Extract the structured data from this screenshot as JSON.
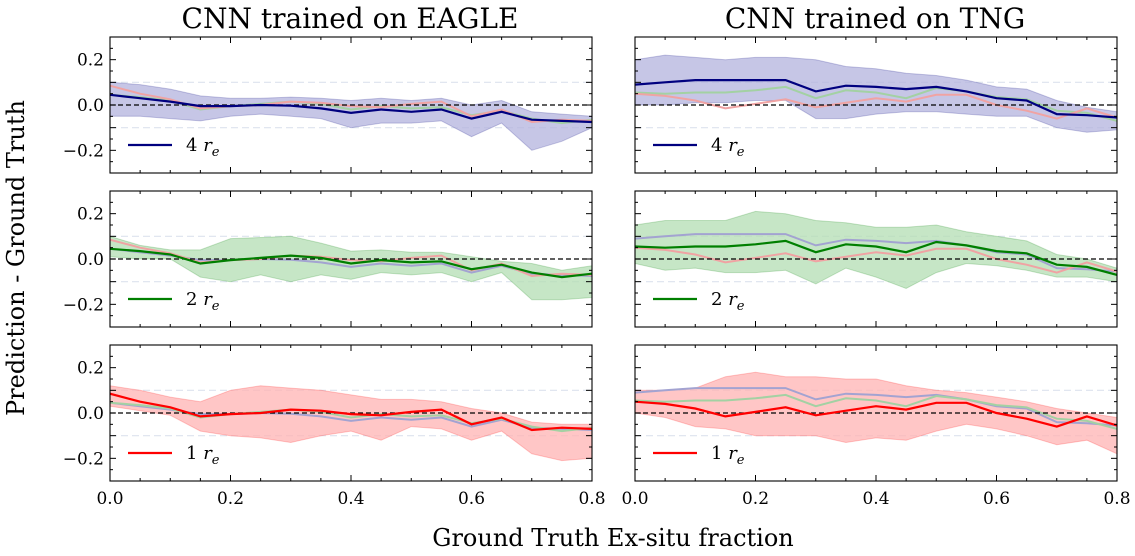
{
  "figure": {
    "ylabel": "Prediction - Ground Truth",
    "xlabel": "Ground Truth Ex-situ fraction",
    "columns": [
      {
        "title": "CNN trained on EAGLE"
      },
      {
        "title": "CNN trained on TNG"
      }
    ],
    "series_colors": {
      "4": "#00007f",
      "2": "#007f00",
      "1": "#ff0000"
    },
    "faded_colors": {
      "4": "#a3a3d1",
      "2": "#a3d1a3",
      "1": "#f0a3a3"
    },
    "band_colors": {
      "4": "#b3b3dd",
      "2": "#b3ddb3",
      "1": "#ffb3b3"
    },
    "legend_symbol": "r",
    "legend_subscript": "e"
  },
  "chart_data": [
    {
      "type": "line",
      "title": "CNN trained on EAGLE",
      "xlabel": "Ground Truth Ex-situ fraction",
      "ylabel": "Prediction - Ground Truth",
      "xlim": [
        0,
        0.8
      ],
      "ylim": [
        -0.3,
        0.3
      ],
      "xticks": [
        "0.0",
        "0.2",
        "0.4",
        "0.6",
        "0.8"
      ],
      "yticks": [
        "−0.2",
        "0.0",
        "0.2"
      ],
      "x": [
        0.0,
        0.05,
        0.1,
        0.15,
        0.2,
        0.25,
        0.3,
        0.35,
        0.4,
        0.45,
        0.5,
        0.55,
        0.6,
        0.65,
        0.7,
        0.75,
        0.8
      ],
      "series": [
        {
          "name": "4",
          "legend": "4 r_e",
          "values": [
            0.045,
            0.03,
            0.015,
            -0.005,
            -0.005,
            0.0,
            -0.003,
            -0.015,
            -0.035,
            -0.02,
            -0.03,
            -0.02,
            -0.06,
            -0.03,
            -0.065,
            -0.07,
            -0.075
          ],
          "upper": [
            0.1,
            0.09,
            0.07,
            0.04,
            0.03,
            0.03,
            0.035,
            0.03,
            0.02,
            0.03,
            0.02,
            0.03,
            0.0,
            0.02,
            -0.03,
            -0.04,
            -0.05
          ],
          "lower": [
            -0.05,
            -0.05,
            -0.06,
            -0.07,
            -0.05,
            -0.04,
            -0.05,
            -0.06,
            -0.1,
            -0.08,
            -0.08,
            -0.07,
            -0.14,
            -0.08,
            -0.2,
            -0.16,
            -0.1
          ]
        },
        {
          "name": "2",
          "legend": "2 r_e",
          "values": [
            0.045,
            0.035,
            0.02,
            -0.02,
            -0.005,
            0.005,
            0.015,
            0.005,
            -0.02,
            -0.005,
            -0.015,
            -0.01,
            -0.045,
            -0.025,
            -0.06,
            -0.08,
            -0.065
          ],
          "upper": [
            0.1,
            0.06,
            0.04,
            0.04,
            0.09,
            0.095,
            0.1,
            0.07,
            0.035,
            0.04,
            0.03,
            0.03,
            0.01,
            -0.01,
            -0.02,
            -0.05,
            -0.03
          ],
          "lower": [
            0.01,
            0.0,
            0.0,
            -0.08,
            -0.1,
            -0.07,
            -0.1,
            -0.07,
            -0.09,
            -0.06,
            -0.07,
            -0.06,
            -0.1,
            -0.06,
            -0.18,
            -0.18,
            -0.17
          ]
        },
        {
          "name": "1",
          "legend": "1 r_e",
          "values": [
            0.085,
            0.05,
            0.025,
            -0.015,
            -0.005,
            0.0,
            0.015,
            0.01,
            -0.005,
            -0.01,
            0.005,
            0.015,
            -0.05,
            -0.02,
            -0.075,
            -0.065,
            -0.07
          ],
          "upper": [
            0.12,
            0.1,
            0.07,
            0.05,
            0.1,
            0.12,
            0.11,
            0.1,
            0.08,
            0.06,
            0.06,
            0.05,
            0.02,
            0.0,
            -0.04,
            -0.05,
            -0.05
          ],
          "lower": [
            0.03,
            0.01,
            -0.01,
            -0.08,
            -0.1,
            -0.11,
            -0.13,
            -0.1,
            -0.08,
            -0.12,
            -0.06,
            -0.07,
            -0.12,
            -0.08,
            -0.18,
            -0.21,
            -0.2
          ]
        }
      ]
    },
    {
      "type": "line",
      "title": "CNN trained on TNG",
      "xlabel": "Ground Truth Ex-situ fraction",
      "ylabel": "Prediction - Ground Truth",
      "xlim": [
        0,
        0.8
      ],
      "ylim": [
        -0.3,
        0.3
      ],
      "xticks": [
        "0.0",
        "0.2",
        "0.4",
        "0.6",
        "0.8"
      ],
      "yticks": [],
      "x": [
        0.0,
        0.05,
        0.1,
        0.15,
        0.2,
        0.25,
        0.3,
        0.35,
        0.4,
        0.45,
        0.5,
        0.55,
        0.6,
        0.65,
        0.7,
        0.75,
        0.8
      ],
      "series": [
        {
          "name": "4",
          "legend": "4 r_e",
          "values": [
            0.09,
            0.1,
            0.11,
            0.11,
            0.11,
            0.11,
            0.06,
            0.085,
            0.08,
            0.07,
            0.08,
            0.06,
            0.03,
            0.02,
            -0.04,
            -0.045,
            -0.055
          ],
          "upper": [
            0.2,
            0.22,
            0.21,
            0.2,
            0.21,
            0.21,
            0.2,
            0.17,
            0.16,
            0.14,
            0.13,
            0.11,
            0.08,
            0.07,
            0.02,
            -0.01,
            -0.03
          ],
          "lower": [
            0.0,
            0.0,
            0.01,
            0.01,
            0.02,
            0.02,
            -0.06,
            -0.06,
            -0.04,
            -0.03,
            -0.03,
            -0.04,
            -0.05,
            -0.05,
            -0.1,
            -0.12,
            -0.11
          ]
        },
        {
          "name": "2",
          "legend": "2 r_e",
          "values": [
            0.055,
            0.05,
            0.055,
            0.055,
            0.065,
            0.08,
            0.03,
            0.065,
            0.055,
            0.03,
            0.075,
            0.06,
            0.035,
            0.025,
            -0.025,
            -0.035,
            -0.07
          ],
          "upper": [
            0.15,
            0.17,
            0.17,
            0.17,
            0.21,
            0.2,
            0.17,
            0.16,
            0.14,
            0.14,
            0.15,
            0.12,
            0.1,
            0.08,
            0.02,
            0.0,
            -0.04
          ],
          "lower": [
            -0.02,
            -0.05,
            -0.04,
            -0.06,
            -0.06,
            -0.05,
            -0.11,
            -0.04,
            -0.08,
            -0.13,
            -0.06,
            -0.02,
            -0.03,
            -0.05,
            -0.08,
            -0.08,
            -0.1
          ]
        },
        {
          "name": "1",
          "legend": "1 r_e",
          "values": [
            0.05,
            0.04,
            0.02,
            -0.015,
            0.005,
            0.025,
            -0.01,
            0.01,
            0.03,
            0.015,
            0.045,
            0.045,
            0.0,
            -0.025,
            -0.06,
            -0.015,
            -0.055
          ],
          "upper": [
            0.1,
            0.1,
            0.11,
            0.16,
            0.18,
            0.16,
            0.16,
            0.15,
            0.15,
            0.12,
            0.1,
            0.09,
            0.07,
            0.05,
            0.02,
            0.0,
            -0.02
          ],
          "lower": [
            0.0,
            -0.02,
            -0.06,
            -0.07,
            -0.1,
            -0.1,
            -0.1,
            -0.13,
            -0.11,
            -0.12,
            -0.08,
            -0.05,
            -0.07,
            -0.1,
            -0.14,
            -0.12,
            -0.18
          ]
        }
      ]
    }
  ]
}
